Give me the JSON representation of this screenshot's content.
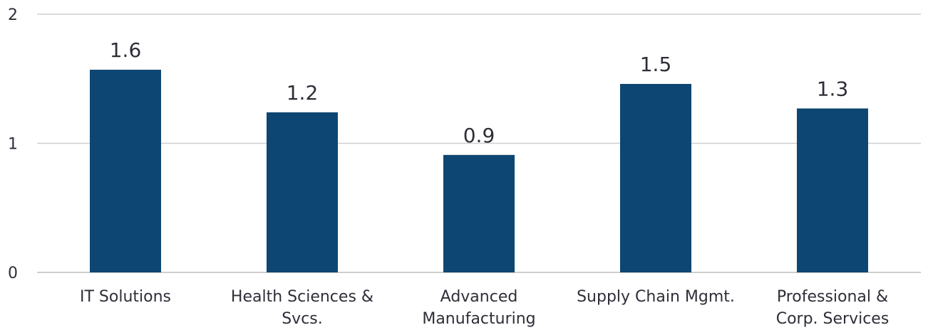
{
  "chart_data": {
    "type": "bar",
    "categories": [
      [
        "IT Solutions"
      ],
      [
        "Health Sciences &",
        "Svcs."
      ],
      [
        "Advanced",
        "Manufacturing"
      ],
      [
        "Supply Chain Mgmt."
      ],
      [
        "Professional &",
        "Corp. Services"
      ]
    ],
    "values": [
      1.57,
      1.24,
      0.91,
      1.46,
      1.27
    ],
    "data_labels": [
      "1.6",
      "1.2",
      "0.9",
      "1.5",
      "1.3"
    ],
    "y_ticks": [
      "0",
      "1",
      "2"
    ],
    "ylim": [
      0,
      2
    ],
    "title": "",
    "xlabel": "",
    "ylabel": "",
    "grid": true,
    "legend": "none",
    "bar_color": "#0d4672"
  }
}
